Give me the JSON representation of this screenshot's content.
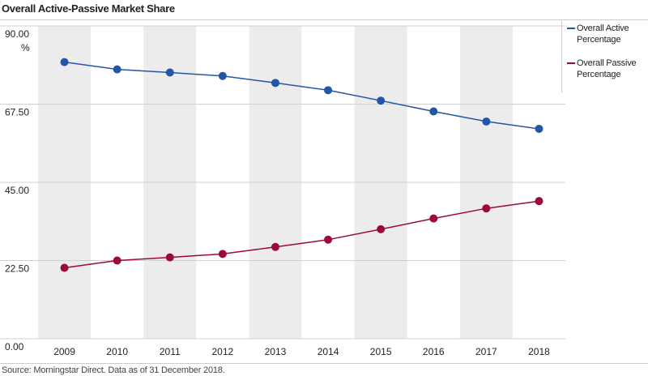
{
  "title": "Overall Active-Passive Market Share",
  "source": "Source: Morningstar Direct. Data as of 31 December 2018.",
  "colors": {
    "active": "#2356a8",
    "passive": "#9b0a3a",
    "band": "#ececec",
    "grid": "#d0d0d0"
  },
  "chart_data": {
    "type": "line",
    "title": "Overall Active-Passive Market Share",
    "xlabel": "",
    "ylabel": "%",
    "categories": [
      "2009",
      "2010",
      "2011",
      "2012",
      "2013",
      "2014",
      "2015",
      "2016",
      "2017",
      "2018"
    ],
    "ylim": [
      0,
      90
    ],
    "yticks": [
      "0.00",
      "22.50",
      "45.00",
      "67.50",
      "90.00"
    ],
    "grid": true,
    "legend_position": "right",
    "series": [
      {
        "name": "Overall Active Percentage",
        "color": "#2356a8",
        "values": [
          79.6,
          77.5,
          76.6,
          75.6,
          73.6,
          71.5,
          68.5,
          65.4,
          62.5,
          60.4
        ]
      },
      {
        "name": "Overall Passive Percentage",
        "color": "#9b0a3a",
        "values": [
          20.4,
          22.5,
          23.4,
          24.4,
          26.4,
          28.5,
          31.5,
          34.6,
          37.5,
          39.6
        ]
      }
    ]
  },
  "legend": [
    {
      "label": "Overall Active Percentage",
      "color": "#2356a8"
    },
    {
      "label": "Overall Passive Percentage",
      "color": "#9b0a3a"
    }
  ]
}
